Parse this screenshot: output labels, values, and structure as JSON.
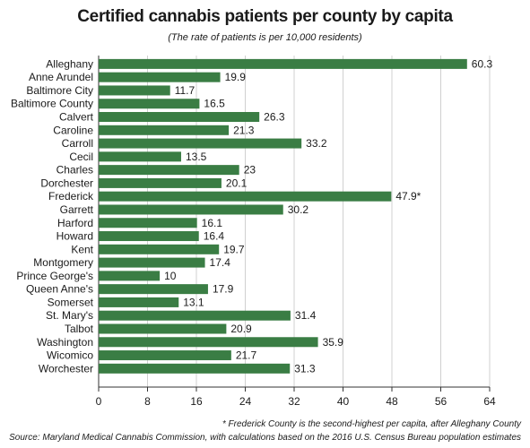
{
  "chart_data": {
    "type": "bar",
    "orientation": "horizontal",
    "title": "Certified cannabis patients per county by capita",
    "subtitle": "(The rate of patients is per 10,000 residents)",
    "categories": [
      "Alleghany",
      "Anne Arundel",
      "Baltimore City",
      "Baltimore County",
      "Calvert",
      "Caroline",
      "Carroll",
      "Cecil",
      "Charles",
      "Dorchester",
      "Frederick",
      "Garrett",
      "Harford",
      "Howard",
      "Kent",
      "Montgomery",
      "Prince George's",
      "Queen Anne's",
      "Somerset",
      "St. Mary's",
      "Talbot",
      "Washington",
      "Wicomico",
      "Worchester"
    ],
    "values": [
      60.3,
      19.9,
      11.7,
      16.5,
      26.3,
      21.3,
      33.2,
      13.5,
      23,
      20.1,
      47.9,
      30.2,
      16.1,
      16.4,
      19.7,
      17.4,
      10,
      17.9,
      13.1,
      31.4,
      20.9,
      35.9,
      21.7,
      31.3
    ],
    "value_labels": [
      "60.3",
      "19.9",
      "11.7",
      "16.5",
      "26.3",
      "21.3",
      "33.2",
      "13.5",
      "23",
      "20.1",
      "47.9*",
      "30.2",
      "16.1",
      "16.4",
      "19.7",
      "17.4",
      "10",
      "17.9",
      "13.1",
      "31.4",
      "20.9",
      "35.9",
      "21.7",
      "31.3"
    ],
    "x_ticks": [
      "0",
      "8",
      "16",
      "24",
      "32",
      "40",
      "48",
      "56",
      "64"
    ],
    "xlim": [
      0,
      64
    ],
    "grid": true,
    "bar_color": "#3a7d44"
  },
  "footnote": "* Frederick County is the second-highest per capita, after Alleghany County",
  "source": "Source: Maryland Medical Cannabis Commission, with calculations based on the 2016 U.S. Census Bureau population estimates"
}
